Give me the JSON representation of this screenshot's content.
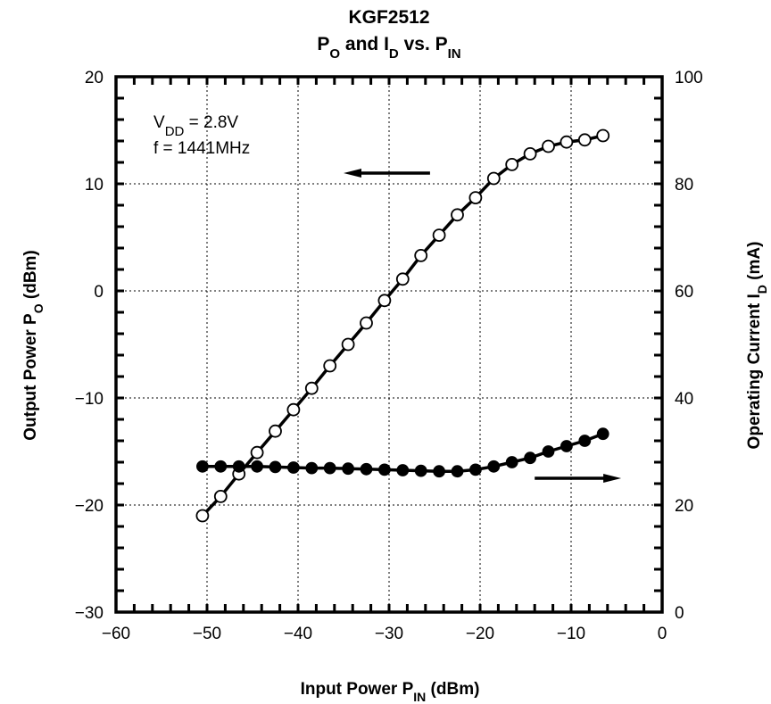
{
  "chart_data": {
    "type": "line",
    "title": "KGF2512",
    "subtitle": {
      "p": "P",
      "o_sub": "O",
      "and": " and I",
      "d_sub": "D",
      "vs": " vs. P",
      "in_sub": "IN"
    },
    "xlabel": {
      "main": "Input Power P",
      "sub": "IN",
      "unit": " (dBm)"
    },
    "ylabel_left": {
      "main": "Output Power P",
      "sub": "O",
      "unit": " (dBm)"
    },
    "ylabel_right": {
      "main": "Operating Current I",
      "sub": "D",
      "unit": " (mA)"
    },
    "xlim": [
      -60,
      0
    ],
    "ylim_left": [
      -30,
      20
    ],
    "ylim_right": [
      0,
      100
    ],
    "xticks": [
      "−60",
      "−50",
      "−40",
      "−30",
      "−20",
      "−10",
      "0"
    ],
    "yticks_left": [
      "−30",
      "−20",
      "−10",
      "0",
      "10",
      "20"
    ],
    "yticks_right": [
      "0",
      "20",
      "40",
      "60",
      "80",
      "100"
    ],
    "grid": true,
    "annotation": {
      "line1_main": "V",
      "line1_sub": "DD",
      "line1_rest": " = 2.8V",
      "line2": "f = 1441MHz"
    },
    "series": [
      {
        "axis": "left",
        "marker": "open-circle",
        "x": [
          -50.5,
          -48.5,
          -46.5,
          -44.5,
          -42.5,
          -40.5,
          -38.5,
          -36.5,
          -34.5,
          -32.5,
          -30.5,
          -28.5,
          -26.5,
          -24.5,
          -22.5,
          -20.5,
          -18.5,
          -16.5,
          -14.5,
          -12.5,
          -10.5,
          -8.5,
          -6.5
        ],
        "y": [
          -21.0,
          -19.2,
          -17.1,
          -15.1,
          -13.1,
          -11.1,
          -9.1,
          -7.0,
          -5.0,
          -3.0,
          -0.9,
          1.1,
          3.3,
          5.2,
          7.1,
          8.7,
          10.5,
          11.8,
          12.8,
          13.5,
          13.9,
          14.1,
          14.5
        ]
      },
      {
        "axis": "right",
        "marker": "filled-circle",
        "x": [
          -50.5,
          -48.5,
          -46.5,
          -44.5,
          -42.5,
          -40.5,
          -38.5,
          -36.5,
          -34.5,
          -32.5,
          -30.5,
          -28.5,
          -26.5,
          -24.5,
          -22.5,
          -20.5,
          -18.5,
          -16.5,
          -14.5,
          -12.5,
          -10.5,
          -8.5,
          -6.5
        ],
        "y": [
          27.2,
          27.2,
          27.2,
          27.2,
          27.1,
          27.0,
          26.9,
          26.9,
          26.8,
          26.7,
          26.6,
          26.5,
          26.4,
          26.3,
          26.3,
          26.6,
          27.2,
          28.0,
          28.8,
          30.0,
          31.0,
          32.0,
          33.3
        ]
      }
    ],
    "arrows": [
      {
        "points_to": "left",
        "x_from": -25.5,
        "x_to": -35.0,
        "y_left": 11.0
      },
      {
        "points_to": "right",
        "x_from": -14.0,
        "x_to": -4.5,
        "y_left": -17.5
      }
    ]
  }
}
